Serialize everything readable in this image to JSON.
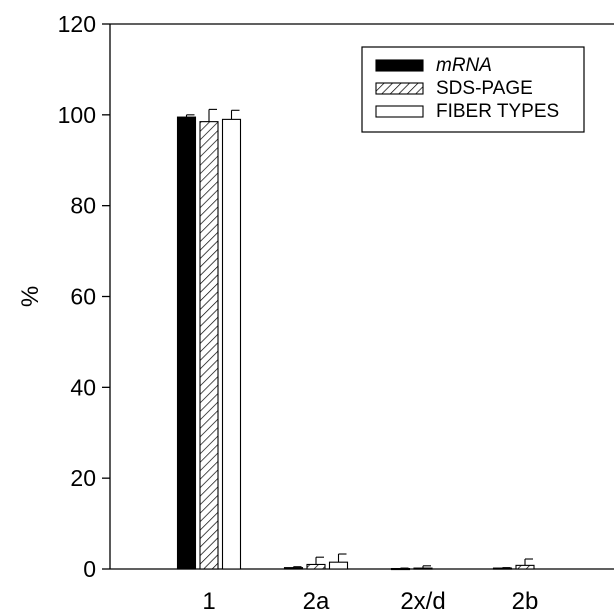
{
  "chart_data": {
    "type": "bar",
    "title": "",
    "xlabel": "",
    "ylabel": "%",
    "ylim": [
      0,
      120
    ],
    "yticks": [
      0,
      20,
      40,
      60,
      80,
      100,
      120
    ],
    "categories": [
      "1",
      "2a",
      "2x/d",
      "2b"
    ],
    "series": [
      {
        "name": "mRNA",
        "fill": "solid-black",
        "values": [
          99.5,
          0.3,
          0.1,
          0.2
        ],
        "errors": [
          0.5,
          0.2,
          0.1,
          0.1
        ]
      },
      {
        "name": "SDS-PAGE",
        "fill": "diagonal-hatch",
        "values": [
          98.5,
          1.0,
          0.2,
          0.8
        ],
        "errors": [
          2.7,
          1.6,
          0.5,
          1.4
        ]
      },
      {
        "name": "FIBER TYPES",
        "fill": "white",
        "values": [
          99.0,
          1.5,
          0,
          0
        ],
        "errors": [
          2.0,
          1.8,
          0,
          0
        ]
      }
    ],
    "legend_position": "top-right",
    "grid": false,
    "colors": {
      "axis": "#000000",
      "bar_solid": "#000000",
      "bar_open": "#ffffff"
    }
  }
}
